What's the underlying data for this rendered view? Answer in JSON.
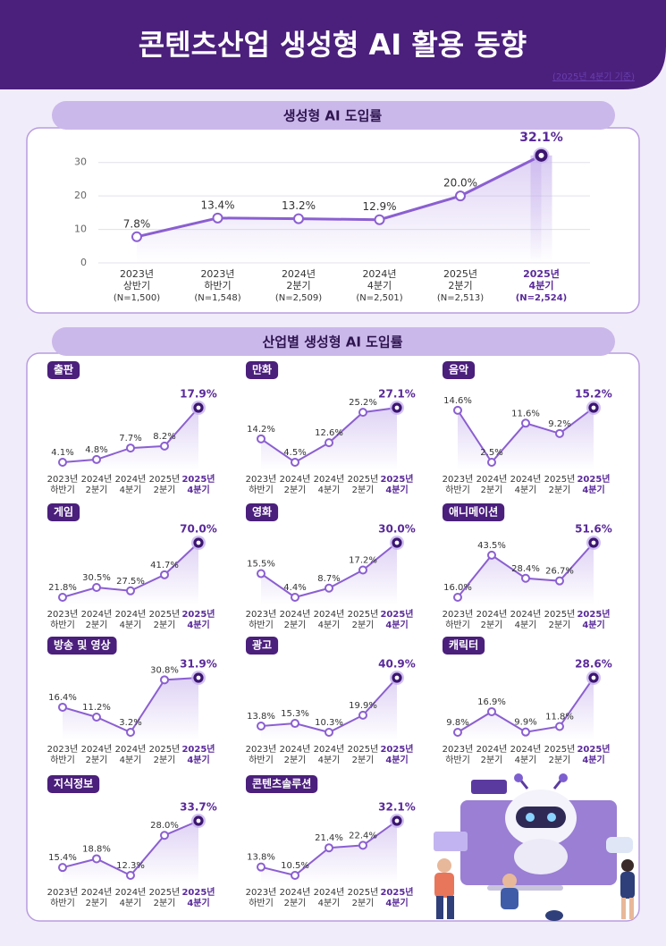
{
  "header": {
    "title": "콘텐츠산업 생성형 AI 활용 동향",
    "note": "(2025년 4분기 기준)"
  },
  "sections": [
    "생성형 AI 도입률",
    "산업별 생성형 AI 도입률"
  ],
  "chart_data": [
    {
      "type": "line",
      "title": "생성형 AI 도입률",
      "color": "#8b5fd1",
      "categories": [
        [
          "2023년",
          "상반기",
          "(N=1,500)"
        ],
        [
          "2023년",
          "하반기",
          "(N=1,548)"
        ],
        [
          "2024년",
          "2분기",
          "(N=2,509)"
        ],
        [
          "2024년",
          "4분기",
          "(N=2,501)"
        ],
        [
          "2025년",
          "2분기",
          "(N=2,513)"
        ],
        [
          "2025년",
          "4분기",
          "(N=2,524)"
        ]
      ],
      "values": [
        7.8,
        13.4,
        13.2,
        12.9,
        20.0,
        32.1
      ],
      "value_labels": [
        "7.8%",
        "13.4%",
        "13.2%",
        "12.9%",
        "20.0%",
        "32.1%"
      ],
      "ylim": [
        0,
        35
      ],
      "yticks": [
        0,
        10,
        20,
        30
      ],
      "grid": true
    },
    {
      "type": "line",
      "title": "출판",
      "categories": [
        [
          "2023년",
          "하반기"
        ],
        [
          "2024년",
          "2분기"
        ],
        [
          "2024년",
          "4분기"
        ],
        [
          "2025년",
          "2분기"
        ],
        [
          "2025년",
          "4분기"
        ]
      ],
      "values": [
        4.1,
        4.8,
        7.7,
        8.2,
        17.9
      ],
      "value_labels": [
        "4.1%",
        "4.8%",
        "7.7%",
        "8.2%",
        "17.9%"
      ]
    },
    {
      "type": "line",
      "title": "만화",
      "categories": [
        [
          "2023년",
          "하반기"
        ],
        [
          "2024년",
          "2분기"
        ],
        [
          "2024년",
          "4분기"
        ],
        [
          "2025년",
          "2분기"
        ],
        [
          "2025년",
          "4분기"
        ]
      ],
      "values": [
        14.2,
        4.5,
        12.6,
        25.2,
        27.1
      ],
      "value_labels": [
        "14.2%",
        "4.5%",
        "12.6%",
        "25.2%",
        "27.1%"
      ]
    },
    {
      "type": "line",
      "title": "음악",
      "categories": [
        [
          "2023년",
          "하반기"
        ],
        [
          "2024년",
          "2분기"
        ],
        [
          "2024년",
          "4분기"
        ],
        [
          "2025년",
          "2분기"
        ],
        [
          "2025년",
          "4분기"
        ]
      ],
      "values": [
        14.6,
        2.5,
        11.6,
        9.2,
        15.2
      ],
      "value_labels": [
        "14.6%",
        "2.5%",
        "11.6%",
        "9.2%",
        "15.2%"
      ]
    },
    {
      "type": "line",
      "title": "게임",
      "categories": [
        [
          "2023년",
          "하반기"
        ],
        [
          "2024년",
          "2분기"
        ],
        [
          "2024년",
          "4분기"
        ],
        [
          "2025년",
          "2분기"
        ],
        [
          "2025년",
          "4분기"
        ]
      ],
      "values": [
        21.8,
        30.5,
        27.5,
        41.7,
        70.0
      ],
      "value_labels": [
        "21.8%",
        "30.5%",
        "27.5%",
        "41.7%",
        "70.0%"
      ]
    },
    {
      "type": "line",
      "title": "영화",
      "categories": [
        [
          "2023년",
          "하반기"
        ],
        [
          "2024년",
          "2분기"
        ],
        [
          "2024년",
          "4분기"
        ],
        [
          "2025년",
          "2분기"
        ],
        [
          "2025년",
          "4분기"
        ]
      ],
      "values": [
        15.5,
        4.4,
        8.7,
        17.2,
        30.0
      ],
      "value_labels": [
        "15.5%",
        "4.4%",
        "8.7%",
        "17.2%",
        "30.0%"
      ]
    },
    {
      "type": "line",
      "title": "애니메이션",
      "categories": [
        [
          "2023년",
          "하반기"
        ],
        [
          "2024년",
          "2분기"
        ],
        [
          "2024년",
          "4분기"
        ],
        [
          "2025년",
          "2분기"
        ],
        [
          "2025년",
          "4분기"
        ]
      ],
      "values": [
        16.0,
        43.5,
        28.4,
        26.7,
        51.6
      ],
      "value_labels": [
        "16.0%",
        "43.5%",
        "28.4%",
        "26.7%",
        "51.6%"
      ]
    },
    {
      "type": "line",
      "title": "방송 및 영상",
      "categories": [
        [
          "2023년",
          "하반기"
        ],
        [
          "2024년",
          "2분기"
        ],
        [
          "2024년",
          "4분기"
        ],
        [
          "2025년",
          "2분기"
        ],
        [
          "2025년",
          "4분기"
        ]
      ],
      "values": [
        16.4,
        11.2,
        3.2,
        30.8,
        31.9
      ],
      "value_labels": [
        "16.4%",
        "11.2%",
        "3.2%",
        "30.8%",
        "31.9%"
      ]
    },
    {
      "type": "line",
      "title": "광고",
      "categories": [
        [
          "2023년",
          "하반기"
        ],
        [
          "2024년",
          "2분기"
        ],
        [
          "2024년",
          "4분기"
        ],
        [
          "2025년",
          "2분기"
        ],
        [
          "2025년",
          "4분기"
        ]
      ],
      "values": [
        13.8,
        15.3,
        10.3,
        19.9,
        40.9
      ],
      "value_labels": [
        "13.8%",
        "15.3%",
        "10.3%",
        "19.9%",
        "40.9%"
      ]
    },
    {
      "type": "line",
      "title": "캐릭터",
      "categories": [
        [
          "2023년",
          "하반기"
        ],
        [
          "2024년",
          "2분기"
        ],
        [
          "2024년",
          "4분기"
        ],
        [
          "2025년",
          "2분기"
        ],
        [
          "2025년",
          "4분기"
        ]
      ],
      "values": [
        9.8,
        16.9,
        9.9,
        11.8,
        28.6
      ],
      "value_labels": [
        "9.8%",
        "16.9%",
        "9.9%",
        "11.8%",
        "28.6%"
      ]
    },
    {
      "type": "line",
      "title": "지식정보",
      "categories": [
        [
          "2023년",
          "하반기"
        ],
        [
          "2024년",
          "2분기"
        ],
        [
          "2024년",
          "4분기"
        ],
        [
          "2025년",
          "2분기"
        ],
        [
          "2025년",
          "4분기"
        ]
      ],
      "values": [
        15.4,
        18.8,
        12.3,
        28.0,
        33.7
      ],
      "value_labels": [
        "15.4%",
        "18.8%",
        "12.3%",
        "28.0%",
        "33.7%"
      ]
    },
    {
      "type": "line",
      "title": "콘텐츠솔루션",
      "categories": [
        [
          "2023년",
          "하반기"
        ],
        [
          "2024년",
          "2분기"
        ],
        [
          "2024년",
          "4분기"
        ],
        [
          "2025년",
          "2분기"
        ],
        [
          "2025년",
          "4분기"
        ]
      ],
      "values": [
        13.8,
        10.5,
        21.4,
        22.4,
        32.1
      ],
      "value_labels": [
        "13.8%",
        "10.5%",
        "21.4%",
        "22.4%",
        "32.1%"
      ]
    }
  ]
}
